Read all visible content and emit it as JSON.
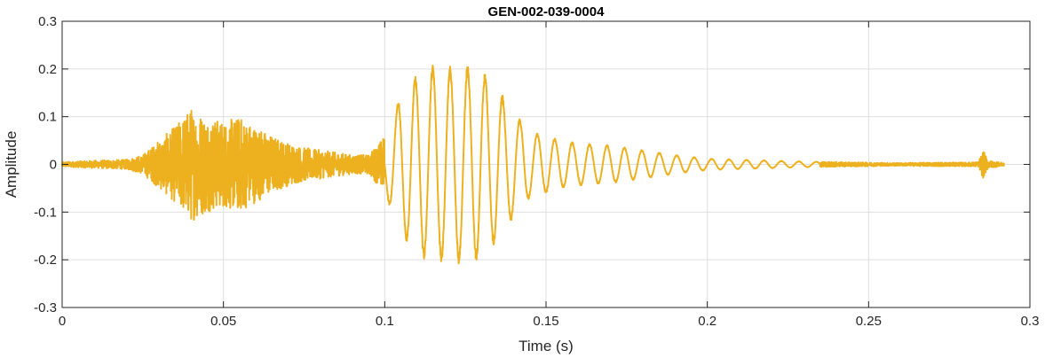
{
  "chart_data": {
    "type": "line",
    "title": "GEN-002-039-0004",
    "xlabel": "Time (s)",
    "ylabel": "Amplitude",
    "xlim": [
      0,
      0.3
    ],
    "ylim": [
      -0.3,
      0.3
    ],
    "xticks": [
      0,
      0.05,
      0.1,
      0.15,
      0.2,
      0.25,
      0.3
    ],
    "xtick_labels": [
      "0",
      "0.05",
      "0.1",
      "0.15",
      "0.2",
      "0.25",
      "0.3"
    ],
    "yticks": [
      -0.3,
      -0.2,
      -0.1,
      0,
      0.1,
      0.2,
      0.3
    ],
    "ytick_labels": [
      "-0.3",
      "-0.2",
      "-0.1",
      "0",
      "0.1",
      "0.2",
      "0.3"
    ],
    "grid": true,
    "line_color": "#EDB120",
    "series": [
      {
        "x": [
          0,
          0.01,
          0.02,
          0.025,
          0.03,
          0.035,
          0.04,
          0.045,
          0.05,
          0.055,
          0.06,
          0.065,
          0.07,
          0.075,
          0.08,
          0.085,
          0.09,
          0.095,
          0.1,
          0.105,
          0.11,
          0.115,
          0.12,
          0.125,
          0.13,
          0.135,
          0.14,
          0.145,
          0.15,
          0.155,
          0.16,
          0.17,
          0.18,
          0.19,
          0.2,
          0.21,
          0.22,
          0.23,
          0.24,
          0.25,
          0.26,
          0.27,
          0.28,
          0.284,
          0.2855,
          0.287,
          0.29,
          0.292
        ],
        "y": [
          0.005,
          0.008,
          0.01,
          0.02,
          0.05,
          0.08,
          0.12,
          0.1,
          0.09,
          0.1,
          0.08,
          0.06,
          0.045,
          0.035,
          0.03,
          0.025,
          0.02,
          0.02,
          0.06,
          0.15,
          0.19,
          0.21,
          0.205,
          0.21,
          0.2,
          0.16,
          0.11,
          0.07,
          0.06,
          0.05,
          0.045,
          0.04,
          0.03,
          0.02,
          0.012,
          0.01,
          0.008,
          0.006,
          0.005,
          0.004,
          0.003,
          0.004,
          0.004,
          0.005,
          0.03,
          0.008,
          0.005,
          0.003
        ]
      }
    ]
  }
}
